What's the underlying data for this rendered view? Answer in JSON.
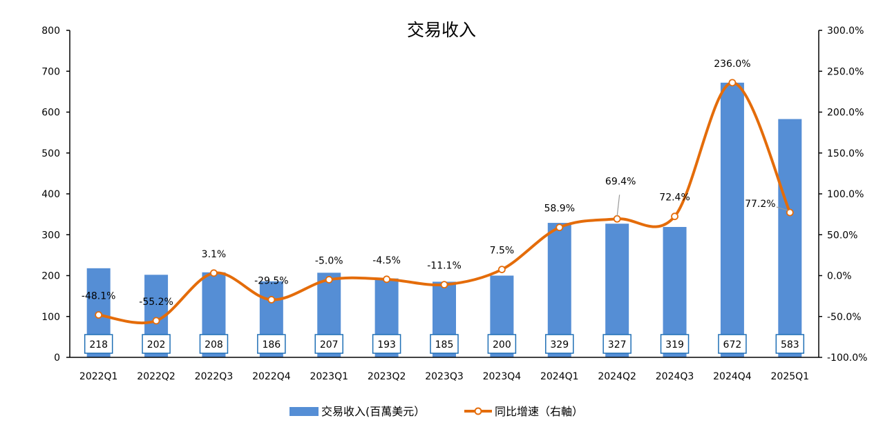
{
  "chart_data": {
    "type": "bar+line",
    "title": "交易收入",
    "categories": [
      "2022Q1",
      "2022Q2",
      "2022Q3",
      "2022Q4",
      "2023Q1",
      "2023Q2",
      "2023Q3",
      "2023Q4",
      "2024Q1",
      "2024Q2",
      "2024Q3",
      "2024Q4",
      "2025Q1"
    ],
    "series": [
      {
        "name": "交易收入(百萬美元）",
        "type": "bar",
        "axis": "left",
        "color": "#558ED5",
        "values": [
          218,
          202,
          208,
          186,
          207,
          193,
          185,
          200,
          329,
          327,
          319,
          672,
          583
        ],
        "labels": [
          "218",
          "202",
          "208",
          "186",
          "207",
          "193",
          "185",
          "200",
          "329",
          "327",
          "319",
          "672",
          "583"
        ]
      },
      {
        "name": "同比增速（右軸）",
        "type": "line",
        "axis": "right",
        "color": "#E46C0A",
        "smooth": true,
        "values": [
          -48.1,
          -55.2,
          3.1,
          -29.5,
          -5.0,
          -4.5,
          -11.1,
          7.5,
          58.9,
          69.4,
          72.4,
          236.0,
          77.2
        ],
        "labels": [
          "-48.1%",
          "-55.2%",
          "3.1%",
          "-29.5%",
          "-5.0%",
          "-4.5%",
          "-11.1%",
          "7.5%",
          "58.9%",
          "69.4%",
          "72.4%",
          "236.0%",
          "77.2%"
        ]
      }
    ],
    "y_left": {
      "range": [
        0,
        800
      ],
      "ticks": [
        "0",
        "100",
        "200",
        "300",
        "400",
        "500",
        "600",
        "700",
        "800"
      ]
    },
    "y_right": {
      "range": [
        -100,
        300
      ],
      "ticks": [
        "-100.0%",
        "-50.0%",
        "0.0%",
        "50.0%",
        "100.0%",
        "150.0%",
        "200.0%",
        "250.0%",
        "300.0%"
      ]
    },
    "grid": false,
    "legend_position": "bottom"
  }
}
